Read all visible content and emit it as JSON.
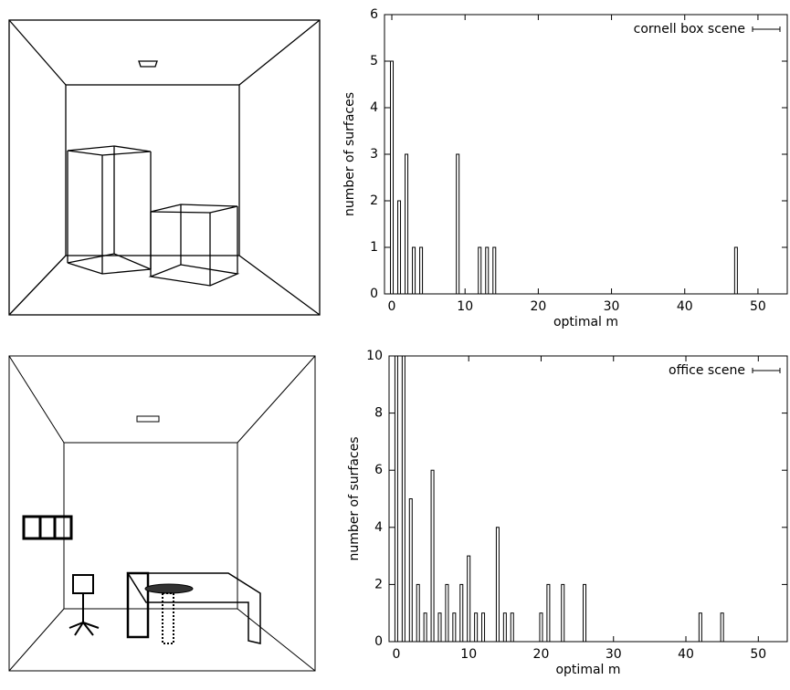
{
  "chart_data": [
    {
      "type": "bar",
      "xlabel": "optimal m",
      "ylabel": "number of surfaces",
      "x": [
        0,
        1,
        2,
        3,
        4,
        9,
        12,
        13,
        14,
        47
      ],
      "series": [
        {
          "name": "cornell box scene",
          "color": "#000000",
          "values": [
            5,
            2,
            3,
            1,
            1,
            3,
            1,
            1,
            1,
            1
          ]
        }
      ],
      "xlim": [
        -1,
        54
      ],
      "ylim": [
        0,
        6
      ],
      "xticks": [
        0,
        10,
        20,
        30,
        40,
        50
      ],
      "yticks": [
        0,
        1,
        2,
        3,
        4,
        5,
        6
      ],
      "grid": false,
      "legend": "top-right"
    },
    {
      "type": "bar",
      "xlabel": "optimal m",
      "ylabel": "number of surfaces",
      "x": [
        0,
        1,
        2,
        3,
        4,
        5,
        6,
        7,
        8,
        9,
        10,
        11,
        12,
        14,
        15,
        16,
        20,
        21,
        23,
        26,
        42,
        45
      ],
      "series": [
        {
          "name": "office scene",
          "color": "#000000",
          "values": [
            10,
            10,
            5,
            2,
            1,
            6,
            1,
            2,
            1,
            2,
            3,
            1,
            1,
            4,
            1,
            1,
            1,
            2,
            2,
            2,
            1,
            1
          ]
        }
      ],
      "xlim": [
        -1,
        54
      ],
      "ylim": [
        0,
        10
      ],
      "xticks": [
        0,
        10,
        20,
        30,
        40,
        50
      ],
      "yticks": [
        0,
        2,
        4,
        6,
        8,
        10
      ],
      "grid": false,
      "legend": "top-right"
    }
  ]
}
